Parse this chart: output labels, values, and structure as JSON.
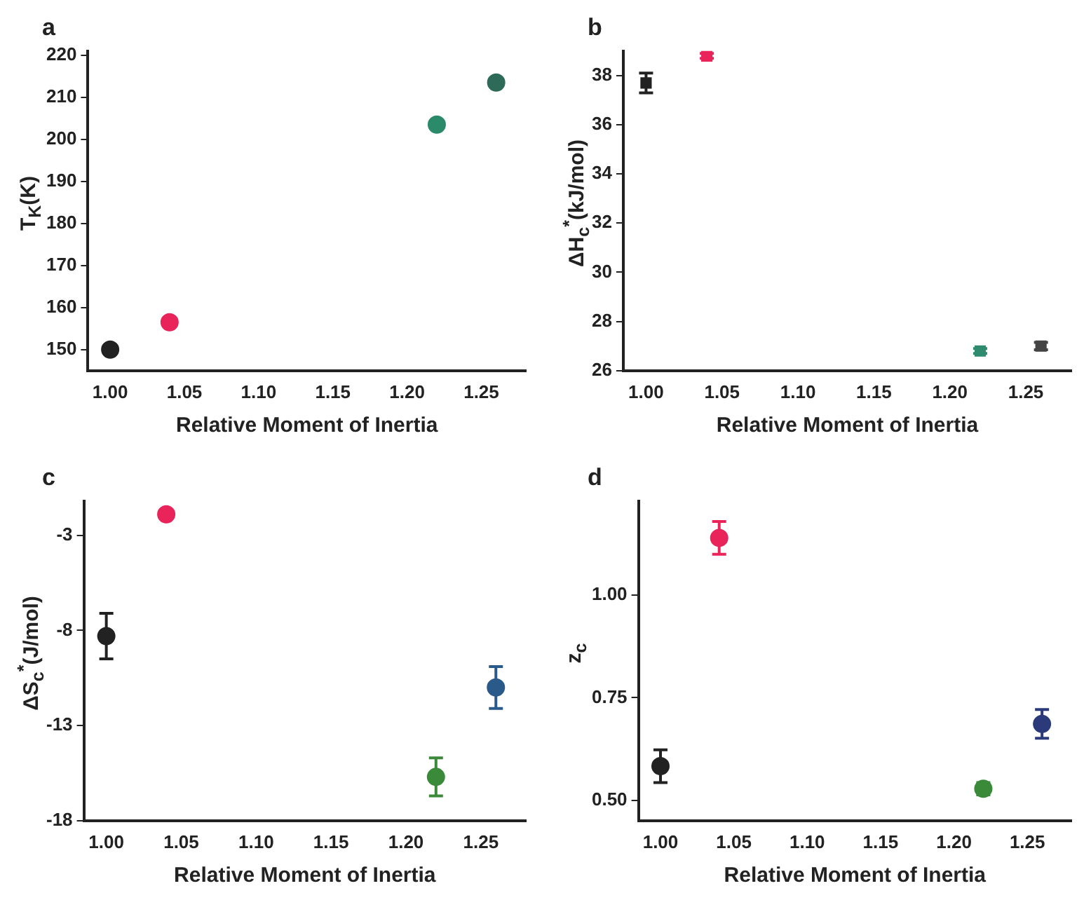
{
  "chart_data": [
    {
      "type": "scatter",
      "title": "a",
      "xlabel": "Relative Moment of Inertia",
      "ylabel": "T$_{K}$(K)",
      "marker": "circle",
      "x": [
        1.0,
        1.04,
        1.22,
        1.26
      ],
      "values": [
        150,
        156.5,
        203.5,
        213.5
      ],
      "colors": [
        "#222222",
        "#e8245a",
        "#2a8a6a",
        "#2d6b58"
      ],
      "xlim": [
        0.985,
        1.28
      ],
      "xticks": [
        {
          "value": 1.0,
          "label": "1.00"
        },
        {
          "value": 1.05,
          "label": "1.05"
        },
        {
          "value": 1.1,
          "label": "1.10"
        },
        {
          "value": 1.15,
          "label": "1.15"
        },
        {
          "value": 1.2,
          "label": "1.20"
        },
        {
          "value": 1.25,
          "label": "1.25"
        }
      ],
      "ylim": [
        145,
        221
      ],
      "yticks": [
        150,
        160,
        170,
        180,
        190,
        200,
        210,
        220
      ]
    },
    {
      "type": "scatter",
      "title": "b",
      "xlabel": "Relative Moment of Inertia",
      "ylabel": "ΔH$_{c}$$^{*}$(kJ/mol)",
      "marker": "square",
      "x": [
        1.0,
        1.04,
        1.22,
        1.26
      ],
      "values": [
        37.7,
        38.8,
        26.8,
        27.0
      ],
      "errors": [
        0.4,
        0.1,
        0.1,
        0.15
      ],
      "colors": [
        "#222222",
        "#e8245a",
        "#2e8b6e",
        "#444444"
      ],
      "xlim": [
        0.985,
        1.28
      ],
      "xticks": [
        {
          "value": 1.0,
          "label": "1.00"
        },
        {
          "value": 1.05,
          "label": "1.05"
        },
        {
          "value": 1.1,
          "label": "1.10"
        },
        {
          "value": 1.15,
          "label": "1.15"
        },
        {
          "value": 1.2,
          "label": "1.20"
        },
        {
          "value": 1.25,
          "label": "1.25"
        }
      ],
      "ylim": [
        26,
        39
      ],
      "yticks": [
        26,
        28,
        30,
        32,
        34,
        36,
        38
      ]
    },
    {
      "type": "scatter",
      "title": "c",
      "xlabel": "Relative Moment of Inertia",
      "ylabel": "ΔS$_{c}$$^{*}$(J/mol)",
      "marker": "circle",
      "x": [
        1.0,
        1.04,
        1.22,
        1.26
      ],
      "values": [
        -8.3,
        -1.9,
        -15.7,
        -11.0
      ],
      "errors": [
        1.2,
        null,
        1.0,
        1.1
      ],
      "colors": [
        "#222222",
        "#e8245a",
        "#3a8a3a",
        "#2a5a8a"
      ],
      "xlim": [
        0.985,
        1.28
      ],
      "xticks": [
        {
          "value": 1.0,
          "label": "1.00"
        },
        {
          "value": 1.05,
          "label": "1.05"
        },
        {
          "value": 1.1,
          "label": "1.10"
        },
        {
          "value": 1.15,
          "label": "1.15"
        },
        {
          "value": 1.2,
          "label": "1.20"
        },
        {
          "value": 1.25,
          "label": "1.25"
        }
      ],
      "ylim": [
        -18,
        -1.2
      ],
      "yticks": [
        -18,
        -13,
        -8,
        -3
      ]
    },
    {
      "type": "scatter",
      "title": "d",
      "xlabel": "Relative Moment of Inertia",
      "ylabel": "z$_{c}$",
      "marker": "circle",
      "x": [
        1.0,
        1.04,
        1.22,
        1.26
      ],
      "values": [
        0.583,
        1.14,
        0.528,
        0.686
      ],
      "errors": [
        0.04,
        0.04,
        0.015,
        0.035
      ],
      "colors": [
        "#222222",
        "#e8245a",
        "#3a8a3a",
        "#2a3a7a"
      ],
      "xlim": [
        0.985,
        1.28
      ],
      "xticks": [
        {
          "value": 1.0,
          "label": "1.00"
        },
        {
          "value": 1.05,
          "label": "1.05"
        },
        {
          "value": 1.1,
          "label": "1.10"
        },
        {
          "value": 1.15,
          "label": "1.15"
        },
        {
          "value": 1.2,
          "label": "1.20"
        },
        {
          "value": 1.25,
          "label": "1.25"
        }
      ],
      "ylim": [
        0.45,
        1.23
      ],
      "yticks": [
        {
          "value": 0.5,
          "label": "0.50"
        },
        {
          "value": 0.75,
          "label": "0.75"
        },
        {
          "value": 1.0,
          "label": "1.00"
        }
      ]
    }
  ]
}
